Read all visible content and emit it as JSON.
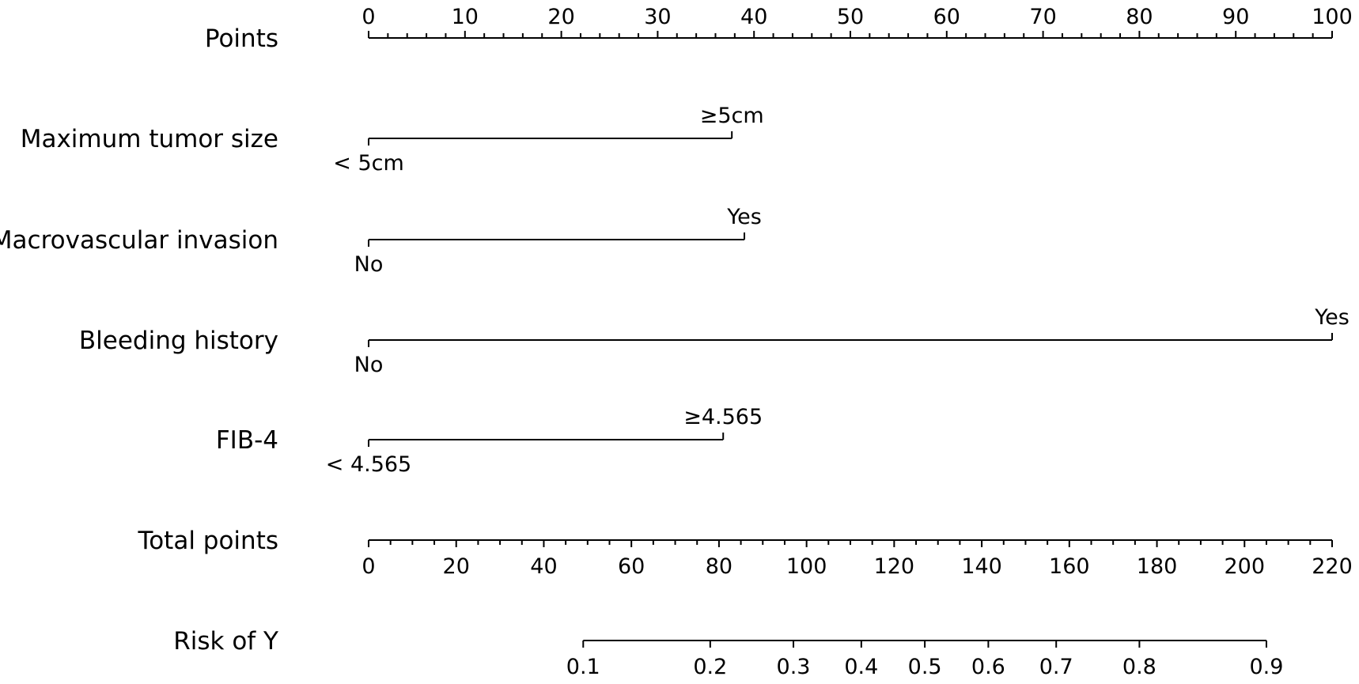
{
  "chart_data": {
    "type": "nomogram",
    "rows": [
      {
        "label": "Points",
        "kind": "points-axis",
        "ticks": [
          0,
          10,
          20,
          30,
          40,
          50,
          60,
          70,
          80,
          90,
          100
        ],
        "labels": [
          "0",
          "10",
          "20",
          "30",
          "40",
          "50",
          "60",
          "70",
          "80",
          "90",
          "100"
        ],
        "minor_step": 2
      },
      {
        "label": "Maximum tumor size",
        "kind": "binary",
        "levels": [
          {
            "label": "< 5cm",
            "points": 0
          },
          {
            "label": "≥5cm",
            "points": 37.7
          }
        ]
      },
      {
        "label": "Macrovascular invasion",
        "kind": "binary",
        "levels": [
          {
            "label": "No",
            "points": 0
          },
          {
            "label": "Yes",
            "points": 39
          }
        ]
      },
      {
        "label": "Bleeding history",
        "kind": "binary",
        "levels": [
          {
            "label": "No",
            "points": 0
          },
          {
            "label": "Yes",
            "points": 100
          }
        ]
      },
      {
        "label": "FIB-4",
        "kind": "binary",
        "levels": [
          {
            "label": "< 4.565",
            "points": 0
          },
          {
            "label": "≥4.565",
            "points": 36.8
          }
        ]
      },
      {
        "label": "Total points",
        "kind": "total-axis",
        "range": [
          0,
          220
        ],
        "ticks": [
          0,
          20,
          40,
          60,
          80,
          100,
          120,
          140,
          160,
          180,
          200,
          220
        ],
        "labels": [
          "0",
          "20",
          "40",
          "60",
          "80",
          "100",
          "120",
          "140",
          "160",
          "180",
          "200",
          "220"
        ],
        "minor_step": 5
      },
      {
        "label": "Risk of Y",
        "kind": "risk-axis",
        "ticks": [
          0.1,
          0.2,
          0.3,
          0.4,
          0.5,
          0.6,
          0.7,
          0.8,
          0.9
        ],
        "labels": [
          "0.1",
          "0.2",
          "0.3",
          "0.4",
          "0.5",
          "0.6",
          "0.7",
          "0.8",
          "0.9"
        ],
        "total_points_at_ticks": [
          49,
          78,
          97,
          112.5,
          127,
          141.5,
          157,
          176,
          205
        ]
      }
    ]
  }
}
